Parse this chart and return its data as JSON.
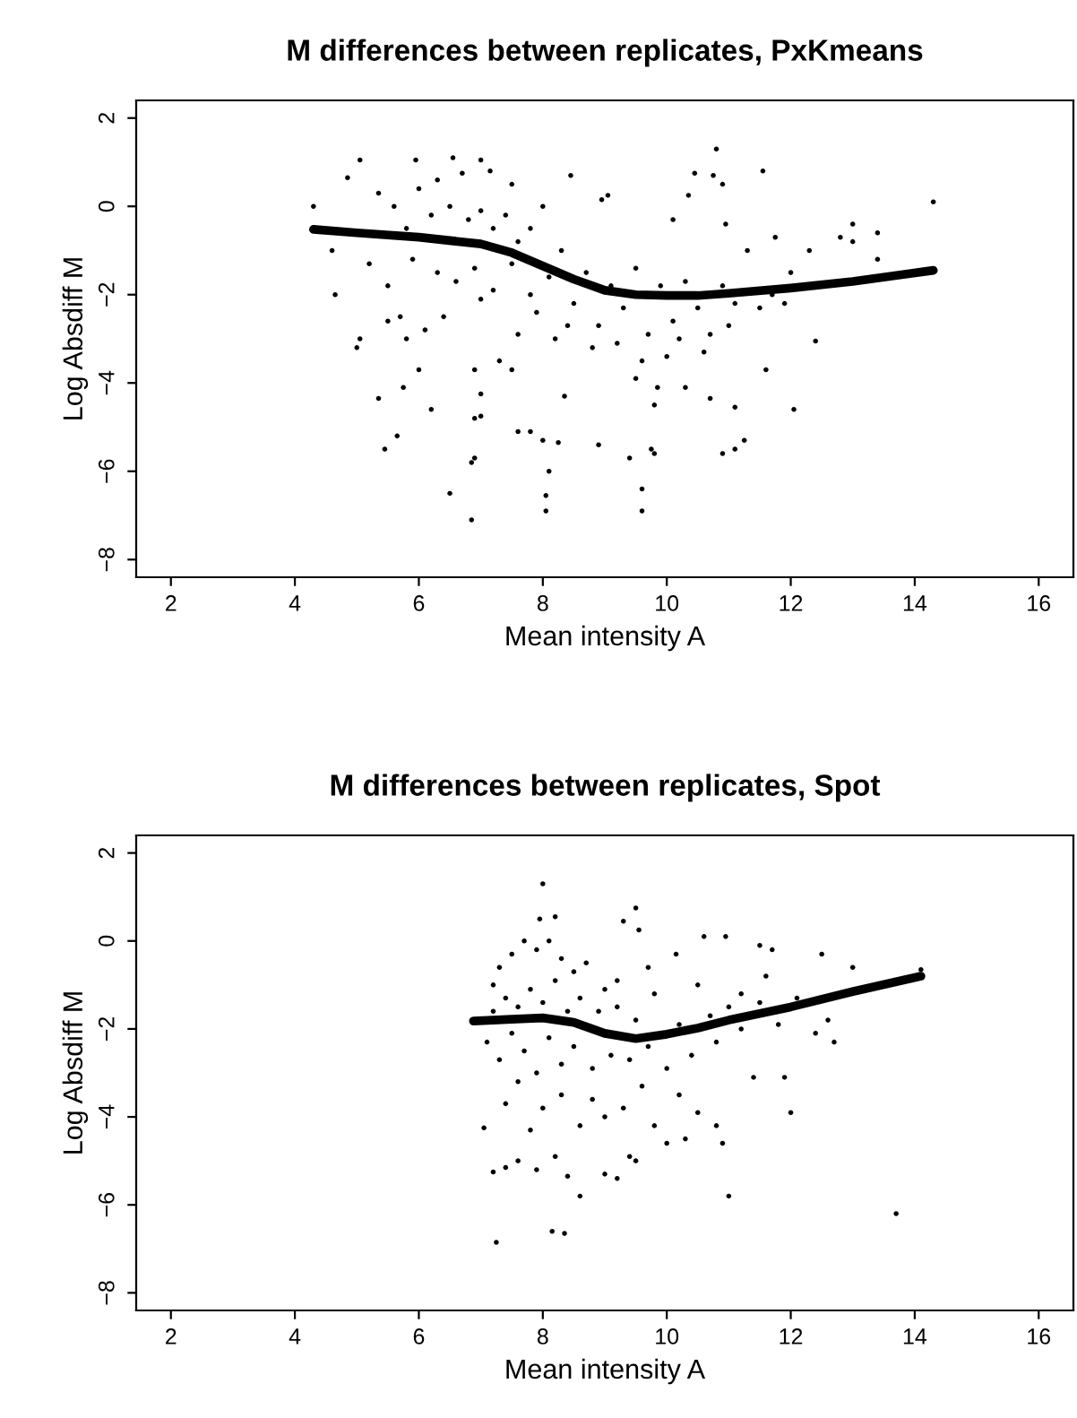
{
  "chart_data": [
    {
      "type": "scatter",
      "title": "M differences between replicates, PxKmeans",
      "xlabel": "Mean intensity A",
      "ylabel": "Log Absdiff M",
      "xlim": [
        1.44,
        16.56
      ],
      "ylim": [
        -8.4,
        2.4
      ],
      "xticks": [
        2,
        4,
        6,
        8,
        10,
        12,
        14,
        16
      ],
      "yticks": [
        {
          "value": -8,
          "label": "−8"
        },
        {
          "value": -6,
          "label": "−6"
        },
        {
          "value": -4,
          "label": "−4"
        },
        {
          "value": -2,
          "label": "−2"
        },
        0,
        2
      ],
      "grid": false,
      "legend": false,
      "series": [
        {
          "marker": "circle",
          "color": "#000000",
          "x": [
            4.3,
            4.6,
            4.65,
            4.85,
            5.05,
            5.0,
            5.05,
            5.35,
            5.45,
            5.65,
            5.75,
            5.5,
            5.7,
            5.8,
            6.0,
            6.1,
            6.2,
            6.5,
            6.85,
            6.85,
            6.9,
            6.9,
            7.0,
            6.9,
            7.0,
            7.3,
            7.5,
            7.6,
            7.8,
            8.0,
            8.05,
            8.05,
            8.1,
            8.25,
            8.35,
            8.9,
            9.4,
            9.5,
            9.6,
            9.6,
            9.75,
            9.8,
            9.8,
            9.85,
            10.2,
            10.3,
            10.7,
            10.9,
            11.1,
            11.25,
            11.1,
            11.6,
            12.05,
            12.4,
            14.3,
            13.4,
            13.4,
            13.0,
            13.0,
            12.8,
            12.3,
            12.0,
            11.75,
            11.55,
            10.8,
            10.9,
            10.75,
            10.45,
            10.35,
            10.1,
            10.95,
            9.05,
            8.95,
            8.45,
            7.0,
            6.55,
            5.95,
            6.7,
            7.15,
            5.35,
            6.0,
            6.3,
            7.5,
            8.0,
            5.6,
            5.8,
            6.2,
            6.5,
            6.8,
            7.0,
            7.2,
            7.4,
            7.6,
            7.8,
            5.2,
            5.5,
            5.9,
            6.3,
            6.6,
            6.9,
            7.2,
            7.5,
            7.8,
            8.1,
            8.3,
            8.5,
            8.7,
            8.9,
            9.1,
            9.3,
            9.5,
            9.7,
            9.9,
            10.1,
            10.3,
            10.5,
            10.7,
            10.9,
            11.1,
            11.3,
            11.5,
            11.7,
            11.9,
            6.4,
            7.0,
            7.6,
            8.2,
            8.8,
            9.2,
            9.6,
            10.0,
            10.6,
            11.0,
            8.4,
            7.9
          ],
          "values": [
            0.0,
            -1.0,
            -2.0,
            0.65,
            1.05,
            -3.2,
            -3.0,
            -4.35,
            -5.5,
            -5.2,
            -4.1,
            -2.6,
            -2.5,
            -3.0,
            -3.7,
            -2.8,
            -4.6,
            -6.5,
            -7.1,
            -5.8,
            -5.7,
            -4.8,
            -4.75,
            -3.7,
            -4.25,
            -3.5,
            -3.7,
            -5.1,
            -5.1,
            -5.3,
            -6.55,
            -6.9,
            -6.0,
            -5.35,
            -4.3,
            -5.4,
            -5.7,
            -3.9,
            -6.4,
            -6.9,
            -5.5,
            -5.6,
            -4.5,
            -4.1,
            -3.0,
            -4.1,
            -4.35,
            -5.6,
            -5.5,
            -5.3,
            -4.55,
            -3.7,
            -4.6,
            -3.05,
            0.1,
            -0.6,
            -1.2,
            -0.4,
            -0.8,
            -0.7,
            -1.0,
            -1.5,
            -0.7,
            0.8,
            1.3,
            0.5,
            0.7,
            0.75,
            0.25,
            -0.3,
            -0.4,
            0.25,
            0.15,
            0.7,
            1.05,
            1.1,
            1.05,
            0.75,
            0.8,
            0.3,
            0.4,
            0.6,
            0.5,
            0.0,
            0.0,
            -0.5,
            -0.2,
            0.0,
            -0.3,
            -0.1,
            -0.5,
            -0.2,
            -0.8,
            -0.5,
            -1.3,
            -1.8,
            -1.2,
            -1.5,
            -1.7,
            -1.4,
            -1.9,
            -1.3,
            -2.0,
            -1.6,
            -1.0,
            -2.2,
            -1.5,
            -2.7,
            -1.8,
            -2.3,
            -1.4,
            -2.9,
            -1.8,
            -2.6,
            -1.7,
            -2.3,
            -2.9,
            -1.8,
            -2.2,
            -1.0,
            -2.3,
            -2.0,
            -2.2,
            -2.5,
            -2.1,
            -2.9,
            -3.0,
            -3.2,
            -3.1,
            -3.5,
            -3.4,
            -3.3,
            -2.7,
            -2.7,
            -2.4
          ]
        },
        {
          "type": "line",
          "line_style": "solid",
          "color": "#000000",
          "x": [
            4.3,
            5,
            6,
            7,
            7.5,
            8,
            8.5,
            9,
            9.5,
            10,
            10.5,
            11,
            12,
            13,
            14.3
          ],
          "values": [
            -0.52,
            -0.6,
            -0.7,
            -0.85,
            -1.05,
            -1.35,
            -1.65,
            -1.9,
            -2.0,
            -2.02,
            -2.02,
            -1.97,
            -1.85,
            -1.7,
            -1.45
          ]
        }
      ]
    },
    {
      "type": "scatter",
      "title": "M differences between replicates, Spot",
      "xlabel": "Mean intensity A",
      "ylabel": "Log Absdiff M",
      "xlim": [
        1.44,
        16.56
      ],
      "ylim": [
        -8.4,
        2.4
      ],
      "xticks": [
        2,
        4,
        6,
        8,
        10,
        12,
        14,
        16
      ],
      "yticks": [
        {
          "value": -8,
          "label": "−8"
        },
        {
          "value": -6,
          "label": "−6"
        },
        {
          "value": -4,
          "label": "−4"
        },
        {
          "value": -2,
          "label": "−2"
        },
        0,
        2
      ],
      "grid": false,
      "legend": false,
      "series": [
        {
          "marker": "circle",
          "color": "#000000",
          "x": [
            8.0,
            9.5,
            9.55,
            9.3,
            8.2,
            7.95,
            11.5,
            11.7,
            12.5,
            13.0,
            14.1,
            10.6,
            10.95,
            10.15,
            9.7,
            7.05,
            7.2,
            7.4,
            7.25,
            8.15,
            8.35,
            8.4,
            8.6,
            9.0,
            9.2,
            9.4,
            9.5,
            10.3,
            10.5,
            10.8,
            10.9,
            11.0,
            11.4,
            11.9,
            12.0,
            12.4,
            12.6,
            12.7,
            13.7,
            7.6,
            7.9,
            8.2,
            7.8,
            7.4,
            7.6,
            8.0,
            8.3,
            8.6,
            8.8,
            9.0,
            9.3,
            9.6,
            9.8,
            10.0,
            10.2,
            7.2,
            7.3,
            7.5,
            7.7,
            7.9,
            8.1,
            8.3,
            8.5,
            8.7,
            9.0,
            9.2,
            7.1,
            7.3,
            7.5,
            7.7,
            7.9,
            8.1,
            8.3,
            8.5,
            8.8,
            9.1,
            9.4,
            9.7,
            10.0,
            7.2,
            7.4,
            7.6,
            7.8,
            8.0,
            8.2,
            8.4,
            8.6,
            8.9,
            9.2,
            9.5,
            9.8,
            10.2,
            10.5,
            10.8,
            11.0,
            11.2,
            11.5,
            11.8,
            12.1,
            10.4,
            10.7,
            11.2,
            11.6
          ],
          "values": [
            1.3,
            0.75,
            0.25,
            0.45,
            0.55,
            0.5,
            -0.1,
            -0.2,
            -0.3,
            -0.6,
            -0.65,
            0.1,
            0.1,
            -0.3,
            -0.6,
            -4.25,
            -5.25,
            -5.15,
            -6.85,
            -6.6,
            -6.65,
            -5.35,
            -5.8,
            -5.3,
            -5.4,
            -4.9,
            -5.0,
            -4.5,
            -3.9,
            -4.2,
            -4.6,
            -5.8,
            -3.1,
            -3.1,
            -3.9,
            -2.1,
            -1.8,
            -2.3,
            -6.2,
            -5.0,
            -5.2,
            -4.9,
            -4.3,
            -3.7,
            -3.2,
            -3.8,
            -3.5,
            -4.2,
            -3.6,
            -4.0,
            -3.8,
            -3.3,
            -4.2,
            -4.6,
            -3.5,
            -1.0,
            -0.6,
            -0.3,
            0.0,
            -0.2,
            0.0,
            -0.4,
            -0.7,
            -0.5,
            -1.1,
            -0.9,
            -2.3,
            -2.7,
            -2.1,
            -2.5,
            -3.0,
            -2.2,
            -2.8,
            -2.4,
            -2.9,
            -2.6,
            -2.7,
            -2.4,
            -2.9,
            -1.6,
            -1.3,
            -1.5,
            -1.1,
            -1.4,
            -0.9,
            -1.6,
            -1.3,
            -1.6,
            -1.5,
            -1.8,
            -1.2,
            -1.9,
            -1.0,
            -2.3,
            -1.5,
            -2.0,
            -1.4,
            -1.9,
            -1.3,
            -2.6,
            -1.7,
            -1.2,
            -0.8
          ]
        },
        {
          "type": "line",
          "line_style": "solid",
          "color": "#000000",
          "x": [
            6.88,
            7.5,
            8,
            8.5,
            9,
            9.5,
            10,
            10.5,
            11,
            12,
            13,
            14.1
          ],
          "values": [
            -1.82,
            -1.78,
            -1.75,
            -1.85,
            -2.1,
            -2.22,
            -2.12,
            -1.98,
            -1.8,
            -1.5,
            -1.15,
            -0.8
          ]
        }
      ]
    }
  ]
}
